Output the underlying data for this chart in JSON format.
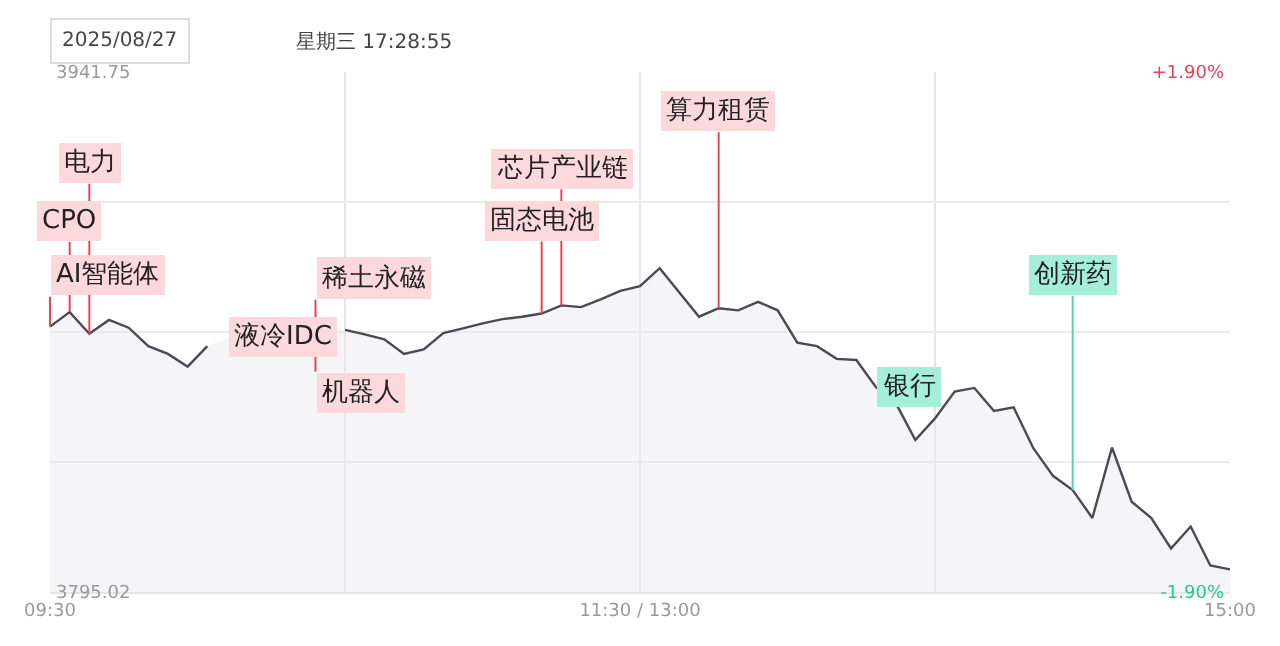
{
  "chart_data": {
    "type": "area",
    "categories": [
      "09:30",
      null,
      null,
      null,
      null,
      null,
      null,
      null,
      null,
      null,
      null,
      null,
      null,
      null,
      null,
      null,
      null,
      null,
      null,
      null,
      null,
      null,
      null,
      null,
      null,
      null,
      null,
      null,
      null,
      null,
      "11:30 / 13:00",
      null,
      null,
      null,
      null,
      null,
      null,
      null,
      null,
      null,
      null,
      null,
      null,
      null,
      null,
      null,
      null,
      null,
      null,
      null,
      null,
      null,
      null,
      null,
      null,
      null,
      null,
      null,
      null,
      null,
      "15:00"
    ],
    "series": [
      {
        "color": "#4a4a55",
        "values": [
          3869.9,
          3874.0,
          3867.9,
          3871.8,
          3869.6,
          3864.4,
          3862.2,
          3858.6,
          3864.4,
          null,
          null,
          null,
          3872.7,
          null,
          null,
          3869.0,
          3867.7,
          3866.3,
          3862.2,
          3863.5,
          3868.1,
          3869.4,
          3870.8,
          3872.0,
          3872.7,
          3873.6,
          3875.9,
          3875.4,
          3877.6,
          3880.0,
          3881.3,
          3886.4,
          3879.5,
          3872.7,
          3875.1,
          3874.5,
          3876.9,
          3874.5,
          3865.4,
          3864.4,
          3860.8,
          3860.5,
          3852.8,
          3848.4,
          3837.9,
          3844.0,
          3851.6,
          3852.6,
          3846.1,
          3847.1,
          3835.6,
          3827.8,
          3823.8,
          3815.9,
          3835.8,
          3820.5,
          3815.9,
          3807.3,
          3813.5,
          3802.5,
          3801.4
        ]
      }
    ],
    "ylim": [
      3795.02,
      3941.75
    ],
    "yticks": [
      3795.02,
      {
        "value": 3831.7,
        "label": null
      },
      {
        "value": 3868.385,
        "label": null
      },
      {
        "value": 3905.07,
        "label": null
      },
      3941.75
    ],
    "y2lim": [
      -1.9,
      1.9
    ],
    "y2ticks": [
      {
        "value": -1.9,
        "label": "-1.90%"
      },
      {
        "value": 1.9,
        "label": "+1.90%"
      }
    ],
    "grid": true,
    "annotations": [
      "2025/08/27",
      "星期三 17:28:55",
      {
        "text": "AI智能体",
        "y": 3869.9
      },
      {
        "text": "CPO",
        "y": 3874.0
      },
      {
        "text": "电力",
        "y": 3867.9
      },
      "液冷IDC",
      {
        "text": "稀土永磁",
        "y": 3869.6
      },
      {
        "text": "机器人",
        "y": 3869.6
      },
      {
        "text": "固态电池",
        "y": 3873.6
      },
      {
        "text": "芯片产业链",
        "y": 3875.9
      },
      {
        "text": "算力租赁",
        "y": 3875.1
      },
      {
        "text": "银行",
        "y": 3852.8
      },
      {
        "text": "创新药",
        "y": 3823.8
      }
    ]
  }
}
